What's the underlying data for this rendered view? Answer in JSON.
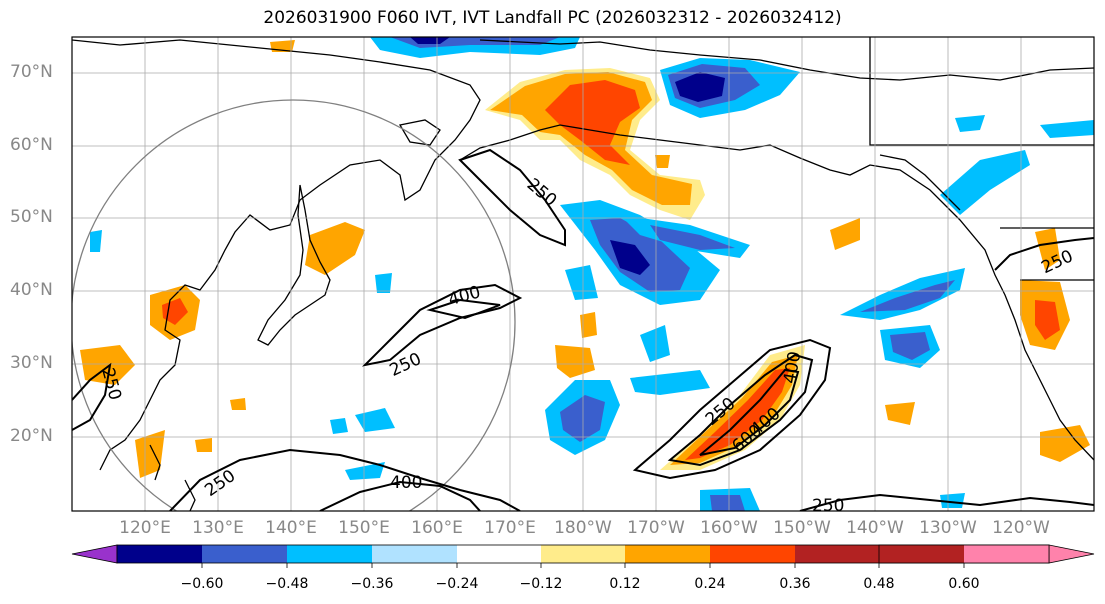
{
  "title": "2026031900 F060 IVT, IVT Landfall PC (2026032312 - 2026032412)",
  "lat_labels": [
    "70°N",
    "60°N",
    "50°N",
    "40°N",
    "30°N",
    "20°N"
  ],
  "lon_labels": [
    "120°E",
    "130°E",
    "140°E",
    "150°E",
    "160°E",
    "170°E",
    "180°W",
    "170°W",
    "160°W",
    "150°W",
    "140°W",
    "130°W",
    "120°W"
  ],
  "contour_labels": [
    "250",
    "400",
    "250",
    "250",
    "400",
    "250",
    "250",
    "400",
    "250",
    "600",
    "400",
    "250"
  ],
  "colorbar": {
    "colors": [
      "#9932cc",
      "#00008b",
      "#3a5fcd",
      "#00bfff",
      "#b0e2ff",
      "#ffffff",
      "#ffec8b",
      "#ffa500",
      "#ff4500",
      "#b22222",
      "#ff82ab"
    ],
    "tick_labels": [
      "−0.60",
      "−0.48",
      "−0.36",
      "−0.24",
      "−0.12",
      "0.12",
      "0.24",
      "0.36",
      "0.48",
      "0.60"
    ]
  }
}
